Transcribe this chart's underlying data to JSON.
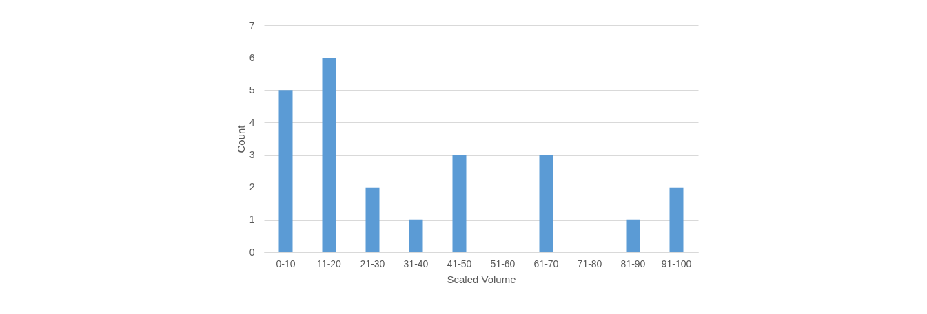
{
  "chart_data": {
    "type": "bar",
    "xlabel": "Scaled Volume",
    "ylabel": "Count",
    "categories": [
      "0-10",
      "11-20",
      "21-30",
      "31-40",
      "41-50",
      "51-60",
      "61-70",
      "71-80",
      "81-90",
      "91-100"
    ],
    "values": [
      5,
      6,
      2,
      1,
      3,
      0,
      3,
      0,
      1,
      2
    ],
    "color": "#5b9bd5",
    "ylim": [
      0,
      7
    ],
    "yticks": [
      0,
      1,
      2,
      3,
      4,
      5,
      6,
      7
    ],
    "grid": "y"
  }
}
